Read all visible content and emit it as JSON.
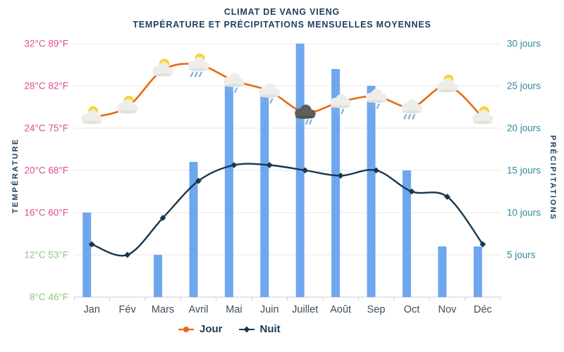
{
  "title": {
    "line1": "CLIMAT DE VANG VIENG",
    "line2": "TEMPÉRATURE ET PRÉCIPITATIONS MENSUELLES MOYENNES"
  },
  "legend": {
    "jour": "Jour",
    "nuit": "Nuit"
  },
  "colors": {
    "title_text": "#1c3f5e",
    "day_line": "#e8680f",
    "night_line": "#17374e",
    "bar": "#6fa7ef",
    "temp_warm_label": "#db4d90",
    "temp_cool_label": "#8cc87b",
    "days_label": "#2f89a3",
    "month_label": "#3d4d5c",
    "gridline": "#e7e7e7",
    "axis_line": "#c9ced4",
    "sun": "#f5d02c",
    "cloud": "#ededea",
    "dark_cloud": "#5e5e5e",
    "rain_drop": "#79b4de"
  },
  "chart_data": {
    "type": "combo bar+line",
    "grid": true,
    "legend_position": "bottom",
    "categories": [
      "Jan",
      "Fév",
      "Mars",
      "Avril",
      "Mai",
      "Juin",
      "Juillet",
      "Août",
      "Sep",
      "Oct",
      "Nov",
      "Déc"
    ],
    "series": [
      {
        "name": "Jour",
        "type": "line",
        "axis": "temperature_c",
        "color": "#e8680f",
        "values": [
          25,
          26,
          29.5,
          30,
          28.5,
          27.5,
          25.5,
          26.5,
          27,
          26,
          28,
          25
        ],
        "icons": [
          "sun-cloud",
          "sun-cloud",
          "sun-cloud",
          "sun-cloud-rain",
          "cloud-rain",
          "cloud-rain",
          "dark-cloud-rain",
          "cloud-rain",
          "cloud-rain",
          "cloud-rain",
          "sun-cloud",
          "sun-cloud"
        ]
      },
      {
        "name": "Nuit",
        "type": "line",
        "axis": "temperature_c",
        "color": "#17374e",
        "marker": "diamond",
        "values": [
          13,
          12,
          15.5,
          19,
          20.5,
          20.5,
          20,
          19.5,
          20,
          18,
          17.5,
          13
        ]
      },
      {
        "name": "Précipitations",
        "type": "bar",
        "axis": "days",
        "color": "#6fa7ef",
        "values": [
          10,
          0,
          5,
          16,
          25,
          24,
          30,
          27,
          25,
          15,
          6,
          6
        ]
      }
    ],
    "left_axis": {
      "title": "TEMPÉRATURE",
      "unit": "°C / °F",
      "min": 8,
      "max": 32,
      "step": 4,
      "ticks": [
        {
          "label": "32°C 89°F",
          "value": 32,
          "tone": "warm"
        },
        {
          "label": "28°C 82°F",
          "value": 28,
          "tone": "warm"
        },
        {
          "label": "24°C 75°F",
          "value": 24,
          "tone": "warm"
        },
        {
          "label": "20°C 68°F",
          "value": 20,
          "tone": "warm"
        },
        {
          "label": "16°C 60°F",
          "value": 16,
          "tone": "warm"
        },
        {
          "label": "12°C 53°F",
          "value": 12,
          "tone": "cool"
        },
        {
          "label": "8°C 46°F",
          "value": 8,
          "tone": "cool"
        }
      ]
    },
    "right_axis": {
      "title": "PRÉCIPITATIONS",
      "unit": "jours",
      "min": 0,
      "max": 30,
      "step": 5,
      "ticks": [
        {
          "label": "30 jours",
          "value": 30
        },
        {
          "label": "25 jours",
          "value": 25
        },
        {
          "label": "20 jours",
          "value": 20
        },
        {
          "label": "15 jours",
          "value": 15
        },
        {
          "label": "10 jours",
          "value": 10
        },
        {
          "label": "5 jours",
          "value": 5
        }
      ]
    }
  }
}
